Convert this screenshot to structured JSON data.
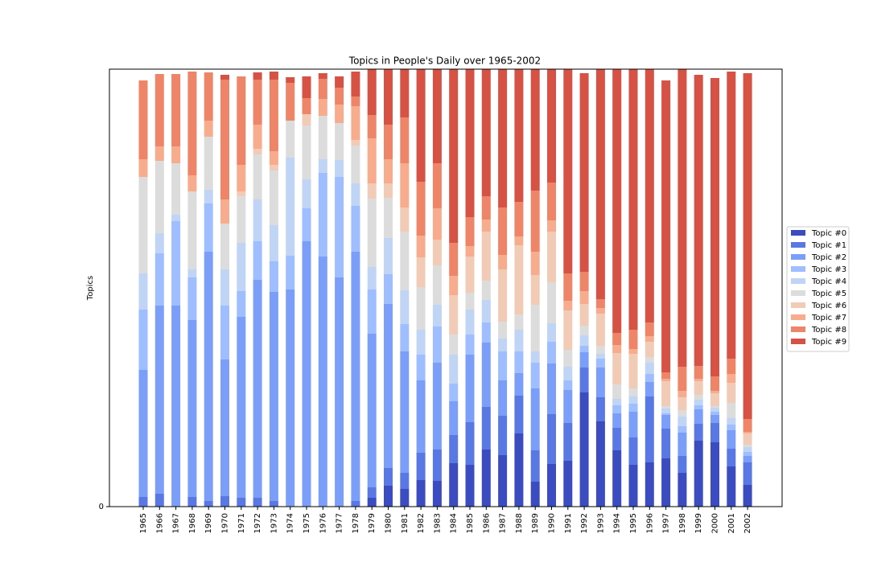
{
  "chart_data": {
    "type": "stacked_bar",
    "title": "Topics in People's Daily over 1965-2002",
    "y_label": "Topics",
    "categories": [
      "1965",
      "1966",
      "1967",
      "1968",
      "1969",
      "1970",
      "1971",
      "1972",
      "1973",
      "1974",
      "1975",
      "1976",
      "1977",
      "1978",
      "1979",
      "1980",
      "1981",
      "1982",
      "1983",
      "1984",
      "1985",
      "1986",
      "1987",
      "1988",
      "1989",
      "1990",
      "1991",
      "1992",
      "1993",
      "1994",
      "1995",
      "1996",
      "1997",
      "1998",
      "1999",
      "2000",
      "2001",
      "2002"
    ],
    "series": [
      {
        "name": "Topic #0",
        "color": "#3b4cc0",
        "values": [
          0,
          0,
          0,
          0,
          0,
          0,
          0,
          0,
          0,
          0,
          0,
          0,
          0,
          0,
          11,
          26,
          22,
          33,
          32,
          54,
          52,
          71,
          64,
          91,
          31,
          53,
          57,
          142,
          106,
          70,
          52,
          55,
          60,
          42,
          82,
          80,
          50,
          27
        ]
      },
      {
        "name": "Topic #1",
        "color": "#5a78e4",
        "values": [
          12,
          16,
          0,
          12,
          7,
          13,
          11,
          11,
          7,
          0,
          0,
          0,
          0,
          7,
          13,
          22,
          20,
          34,
          39,
          35,
          53,
          53,
          49,
          47,
          39,
          62,
          47,
          31,
          30,
          28,
          34,
          82,
          37,
          21,
          21,
          24,
          22,
          28
        ]
      },
      {
        "name": "Topic #2",
        "color": "#7b9ff9",
        "values": [
          158,
          234,
          250,
          220,
          310,
          170,
          225,
          271,
          260,
          270,
          330,
          311,
          285,
          310,
          191,
          204,
          151,
          90,
          108,
          42,
          84,
          80,
          44,
          28,
          77,
          63,
          41,
          19,
          37,
          18,
          32,
          18,
          17,
          29,
          18,
          10,
          23,
          8
        ]
      },
      {
        "name": "Topic #3",
        "color": "#9ebeff",
        "values": [
          75,
          65,
          105,
          53,
          60,
          67,
          32,
          48,
          38,
          42,
          41,
          104,
          125,
          57,
          55,
          37,
          34,
          32,
          45,
          22,
          25,
          25,
          36,
          27,
          32,
          27,
          12,
          8,
          11,
          10,
          10,
          10,
          2,
          8,
          5,
          4,
          7,
          5
        ]
      },
      {
        "name": "Topic #4",
        "color": "#c0d4f5",
        "values": [
          45,
          25,
          8,
          10,
          17,
          45,
          60,
          52,
          45,
          122,
          36,
          17,
          21,
          28,
          28,
          45,
          42,
          31,
          27,
          36,
          31,
          28,
          16,
          27,
          14,
          23,
          17,
          13,
          6,
          8,
          9,
          14,
          6,
          12,
          7,
          5,
          8,
          6
        ]
      },
      {
        "name": "Topic #5",
        "color": "#dddcdc",
        "values": [
          120,
          90,
          64,
          97,
          66,
          57,
          58,
          56,
          68,
          46,
          67,
          54,
          46,
          47,
          85,
          50,
          73,
          53,
          49,
          25,
          21,
          24,
          21,
          19,
          58,
          51,
          21,
          12,
          10,
          18,
          10,
          7,
          3,
          8,
          6,
          2,
          19,
          3
        ]
      },
      {
        "name": "Topic #6",
        "color": "#f2cbb7",
        "values": [
          0,
          0,
          0,
          0,
          0,
          0,
          6,
          7,
          7,
          0,
          14,
          0,
          0,
          7,
          19,
          18,
          30,
          37,
          32,
          49,
          45,
          61,
          65,
          86,
          37,
          63,
          49,
          27,
          40,
          39,
          43,
          19,
          31,
          16,
          17,
          16,
          25,
          14
        ]
      },
      {
        "name": "Topic #7",
        "color": "#f7ac8e",
        "values": [
          22,
          18,
          21,
          20,
          20,
          30,
          33,
          30,
          17,
          0,
          0,
          21,
          23,
          42,
          56,
          30,
          55,
          27,
          39,
          24,
          13,
          15,
          18,
          11,
          29,
          14,
          12,
          16,
          7,
          10,
          6,
          7,
          3,
          8,
          3,
          3,
          11,
          2
        ]
      },
      {
        "name": "Topic #8",
        "color": "#ee8468",
        "values": [
          98,
          90,
          90,
          129,
          60,
          149,
          110,
          56,
          89,
          47,
          20,
          25,
          21,
          12,
          29,
          43,
          57,
          67,
          56,
          41,
          36,
          29,
          59,
          43,
          76,
          47,
          34,
          24,
          11,
          15,
          24,
          17,
          8,
          30,
          16,
          18,
          19,
          16
        ]
      },
      {
        "name": "Topic #9",
        "color": "#d65244",
        "values": [
          0,
          0,
          0,
          0,
          0,
          6,
          0,
          9,
          10,
          7,
          27,
          7,
          14,
          31,
          57,
          69,
          60,
          140,
          117,
          216,
          184,
          158,
          172,
          165,
          151,
          141,
          254,
          247,
          286,
          328,
          324,
          315,
          363,
          370,
          362,
          371,
          357,
          430
        ]
      }
    ],
    "ylim": [
      0,
      544
    ],
    "yticks": [
      0
    ],
    "legend": "right"
  }
}
